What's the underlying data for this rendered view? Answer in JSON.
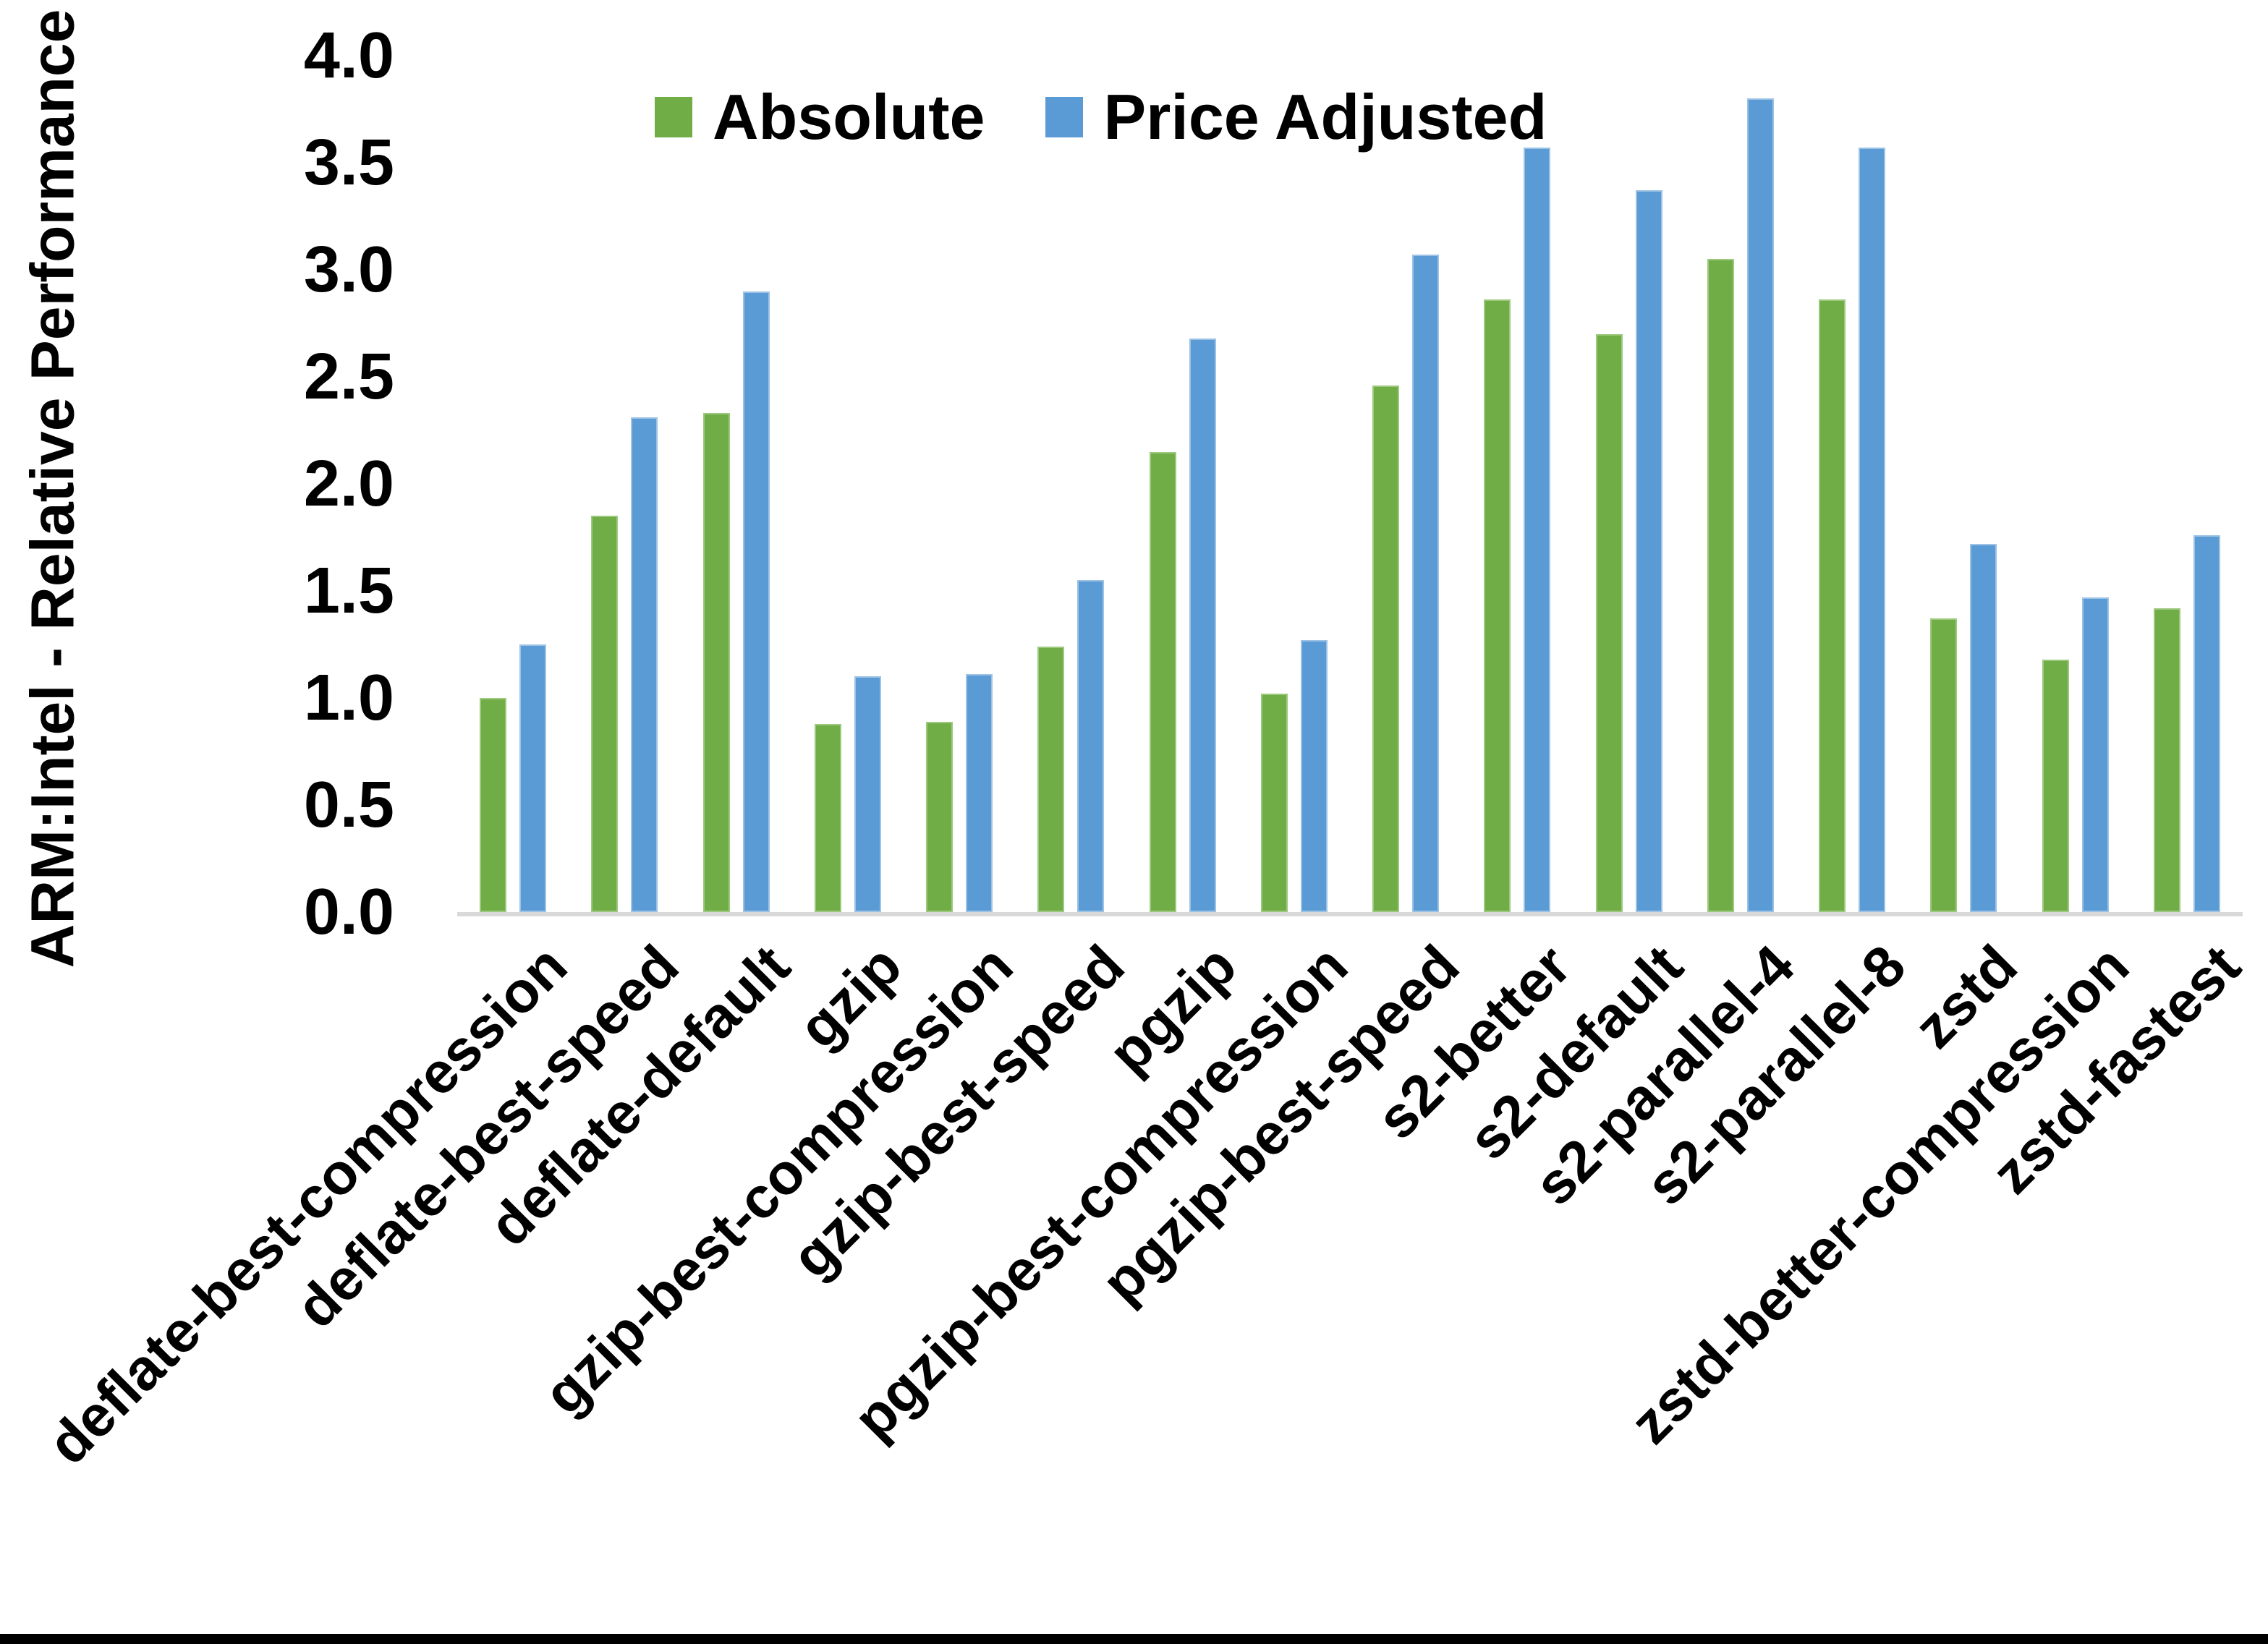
{
  "page": {
    "background": "#ffffff",
    "bottom_border_color": "#000000",
    "text_color": "#000000"
  },
  "chart_data": {
    "type": "bar",
    "title": "",
    "xlabel": "",
    "ylabel": "ARM:Intel - Relative Performance",
    "ylim": [
      0.0,
      4.0
    ],
    "ytick_step": 0.5,
    "yticks": [
      "0.0",
      "0.5",
      "1.0",
      "1.5",
      "2.0",
      "2.5",
      "3.0",
      "3.5",
      "4.0"
    ],
    "grid": false,
    "legend_position": "top-center",
    "axis_line_color": "#D9D9D9",
    "categories": [
      "deflate-best-compression",
      "deflate-best-speed",
      "deflate-default",
      "gzip",
      "gzip-best-compression",
      "gzip-best-speed",
      "pgzip",
      "pgzip-best-compression",
      "pgzip-best-speed",
      "s2-better",
      "s2-default",
      "s2-parallel-4",
      "s2-parallel-8",
      "zstd",
      "zstd-better-compression",
      "zstd-fastest"
    ],
    "series": [
      {
        "name": "Absolute",
        "color": "#70AD47",
        "edge_color": "#9DC97E",
        "values": [
          1.0,
          1.85,
          2.33,
          0.88,
          0.89,
          1.24,
          2.15,
          1.02,
          2.46,
          2.86,
          2.7,
          3.05,
          2.86,
          1.37,
          1.18,
          1.42
        ]
      },
      {
        "name": "Price Adjusted",
        "color": "#5B9BD5",
        "edge_color": "#9CC2E5",
        "values": [
          1.25,
          2.31,
          2.9,
          1.1,
          1.11,
          1.55,
          2.68,
          1.27,
          3.07,
          3.57,
          3.37,
          3.8,
          3.57,
          1.72,
          1.47,
          1.76
        ]
      }
    ]
  }
}
